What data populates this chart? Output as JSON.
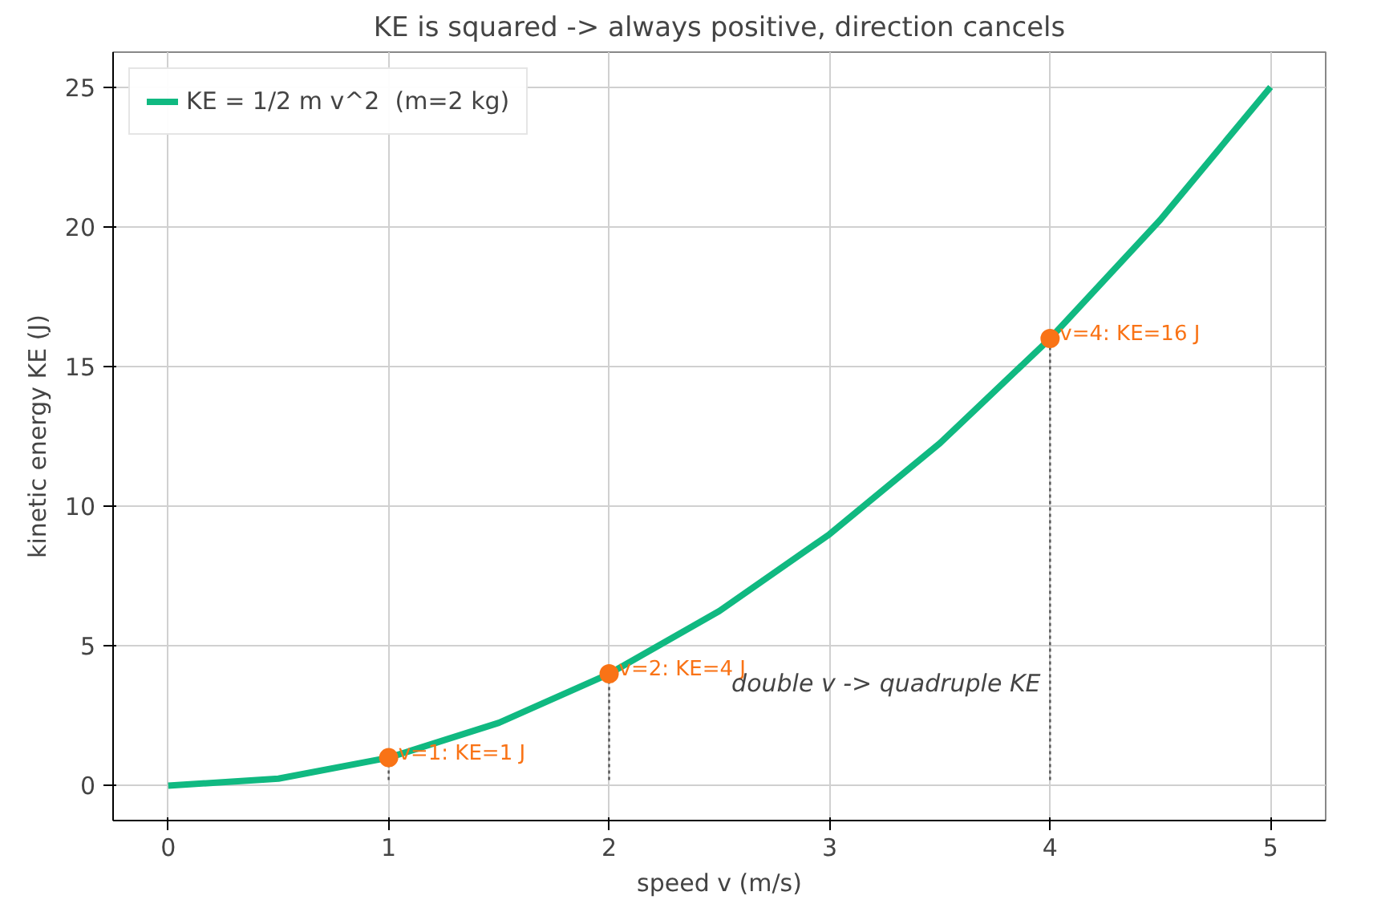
{
  "chart_data": {
    "type": "line",
    "title": "KE is squared -> always positive, direction cancels",
    "xlabel": "speed v (m/s)",
    "ylabel": "kinetic energy KE (J)",
    "x": [
      0,
      0.5,
      1,
      1.5,
      2,
      2.5,
      3,
      3.5,
      4,
      4.5,
      5
    ],
    "series": [
      {
        "name": "KE = 1/2 m v^2  (m=2 kg)",
        "color": "#10b981",
        "values": [
          0,
          0.25,
          1,
          2.25,
          4,
          6.25,
          9,
          12.25,
          16,
          20.25,
          25
        ]
      },
      {
        "type": "scatter",
        "color": "#f97316",
        "x": [
          1,
          2,
          4
        ],
        "values": [
          1,
          4,
          16
        ],
        "marker": "circle"
      }
    ],
    "annotations": [
      {
        "text": "v=1: KE=1 J",
        "x": 1,
        "y": 1
      },
      {
        "text": "v=2: KE=4 J",
        "x": 2,
        "y": 4
      },
      {
        "text": "v=4: KE=16 J",
        "x": 4,
        "y": 16
      },
      "double v  ->  quadruple KE"
    ],
    "xlim": [
      -0.25,
      5.25
    ],
    "ylim": [
      -1.25,
      26.25
    ],
    "xticks": [
      0,
      1,
      2,
      3,
      4,
      5
    ],
    "yticks": [
      0,
      5,
      10,
      15,
      20,
      25
    ],
    "grid": true,
    "legend": "top left"
  }
}
